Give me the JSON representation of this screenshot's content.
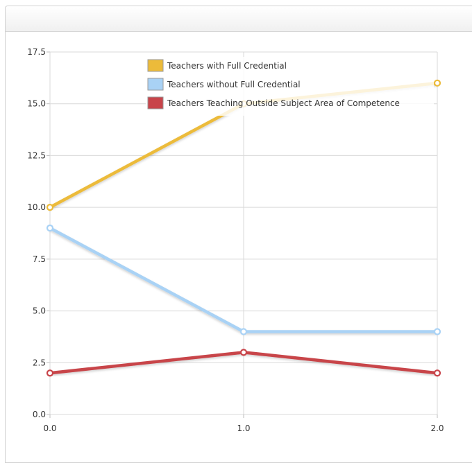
{
  "chart_data": {
    "type": "line",
    "title": "",
    "xlabel": "",
    "ylabel": "",
    "x": [
      0.0,
      1.0,
      2.0
    ],
    "xlim": [
      0.0,
      2.0
    ],
    "ylim": [
      0.0,
      17.5
    ],
    "x_ticks": [
      "0.0",
      "1.0",
      "2.0"
    ],
    "y_ticks": [
      "0.0",
      "2.5",
      "5.0",
      "7.5",
      "10.0",
      "12.5",
      "15.0",
      "17.5"
    ],
    "grid": true,
    "legend_position": "top-center",
    "series": [
      {
        "name": "Teachers with Full Credential",
        "color": "#ECBB3A",
        "values": [
          10,
          15,
          16
        ]
      },
      {
        "name": "Teachers without Full Credential",
        "color": "#A9D2F5",
        "values": [
          9,
          4,
          4
        ]
      },
      {
        "name": "Teachers Teaching Outside Subject Area of Competence",
        "color": "#C8444A",
        "values": [
          2,
          3,
          2
        ]
      }
    ]
  }
}
